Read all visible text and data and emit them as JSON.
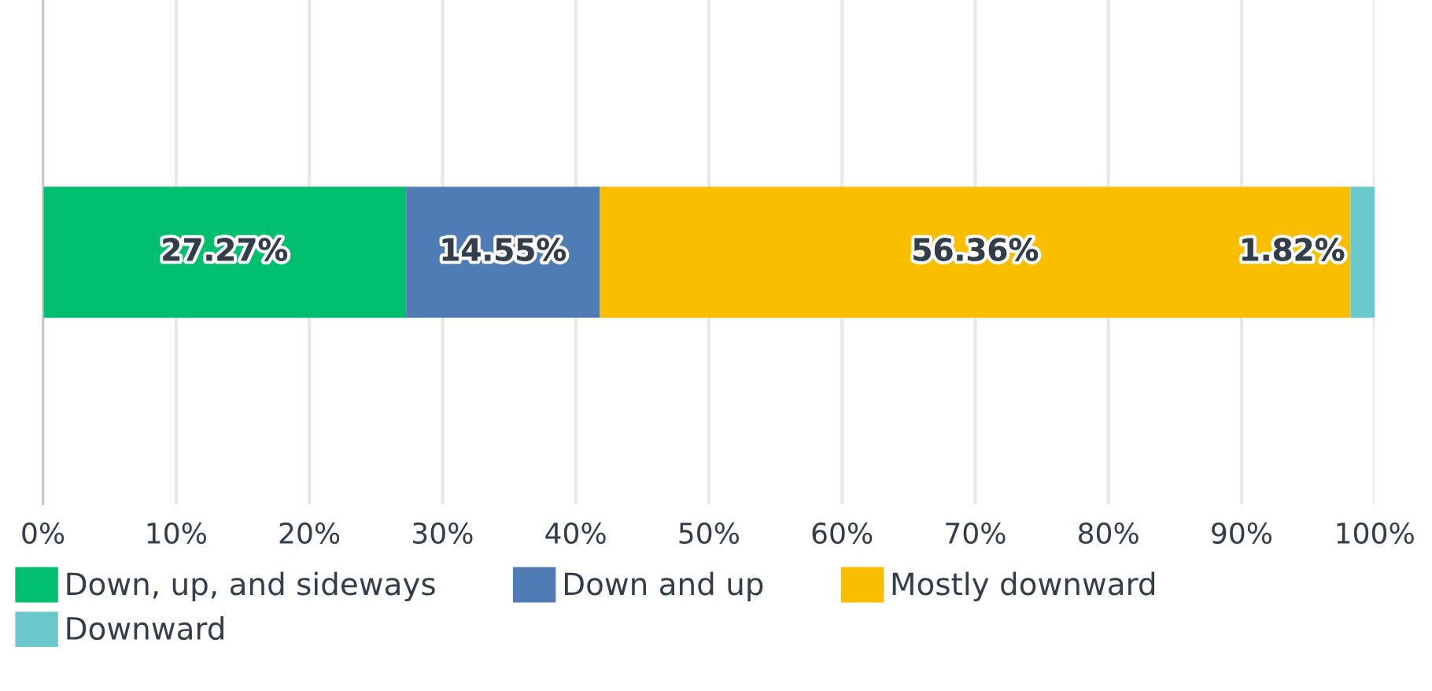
{
  "chart_data": {
    "type": "bar",
    "orientation": "horizontal",
    "stacked": true,
    "categories": [
      null
    ],
    "series": [
      {
        "name": "Down, up, and sideways",
        "color": "#00bf6f",
        "values": [
          27.27
        ],
        "value_labels": [
          "27.27%"
        ]
      },
      {
        "name": "Down and up",
        "color": "#507cb6",
        "values": [
          14.55
        ],
        "value_labels": [
          "14.55%"
        ]
      },
      {
        "name": "Mostly downward",
        "color": "#f9be00",
        "values": [
          56.36
        ],
        "value_labels": [
          "56.36%"
        ]
      },
      {
        "name": "Downward",
        "color": "#6bc8cd",
        "values": [
          1.82
        ],
        "value_labels": [
          "1.82%"
        ]
      }
    ],
    "xlim": [
      0,
      100
    ],
    "xticks": [
      {
        "value": 0,
        "label": "0%"
      },
      {
        "value": 10,
        "label": "10%"
      },
      {
        "value": 20,
        "label": "20%"
      },
      {
        "value": 30,
        "label": "30%"
      },
      {
        "value": 40,
        "label": "40%"
      },
      {
        "value": 50,
        "label": "50%"
      },
      {
        "value": 60,
        "label": "60%"
      },
      {
        "value": 70,
        "label": "70%"
      },
      {
        "value": 80,
        "label": "80%"
      },
      {
        "value": 90,
        "label": "90%"
      },
      {
        "value": 100,
        "label": "100%"
      }
    ],
    "grid": "x",
    "legend": "bottom left",
    "tick_labels": "x"
  }
}
